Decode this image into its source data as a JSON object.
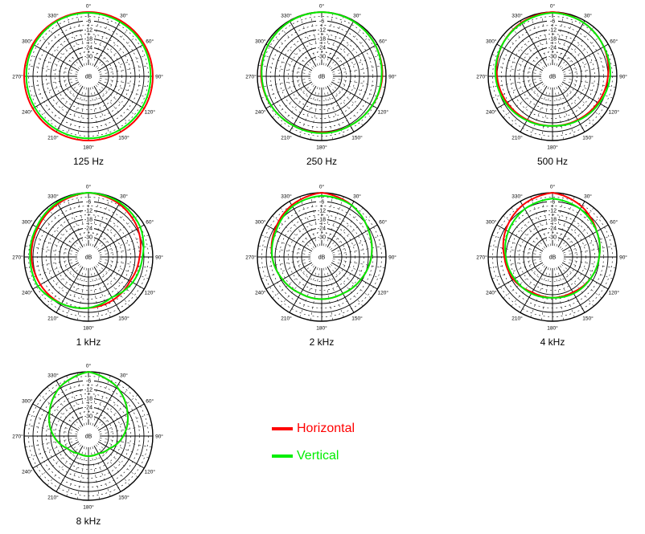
{
  "figure": {
    "ring_labels": [
      "-6",
      "-12",
      "-18",
      "-24",
      "-30"
    ],
    "center_label": "dB",
    "angle_labels": [
      "0°",
      "30°",
      "60°",
      "90°",
      "120°",
      "150°",
      "180°",
      "210°",
      "240°",
      "270°",
      "300°",
      "330°"
    ]
  },
  "legend": [
    {
      "label": "Horizontal",
      "color": "#ff0000"
    },
    {
      "label": "Vertical",
      "color": "#00ee00"
    }
  ],
  "chart_data": [
    {
      "type": "polar",
      "title": "125 Hz",
      "r_range_db": [
        -36,
        0
      ],
      "angles_deg": [
        0,
        30,
        60,
        90,
        120,
        150,
        180,
        210,
        240,
        270,
        300,
        330
      ],
      "series": [
        {
          "name": "Horizontal",
          "color": "#ff0000",
          "values": [
            0,
            0,
            0,
            0,
            0,
            0,
            0,
            0,
            0,
            0,
            0,
            0
          ]
        },
        {
          "name": "Vertical",
          "color": "#00ee00",
          "values": [
            -0.5,
            -1,
            -1,
            -1.5,
            -1.5,
            -1.5,
            -1.5,
            -1.5,
            -1.5,
            -1.5,
            -1,
            -0.5
          ]
        }
      ]
    },
    {
      "type": "polar",
      "title": "250 Hz",
      "r_range_db": [
        -36,
        0
      ],
      "angles_deg": [
        0,
        30,
        60,
        90,
        120,
        150,
        180,
        210,
        240,
        270,
        300,
        330
      ],
      "series": [
        {
          "name": "Horizontal",
          "color": "#ff0000",
          "values": [
            0,
            -0.5,
            -1.5,
            -2.5,
            -4,
            -5,
            -5.5,
            -5,
            -4,
            -2.5,
            -1.5,
            -0.5
          ]
        },
        {
          "name": "Vertical",
          "color": "#00ee00",
          "values": [
            0,
            -0.5,
            -1.5,
            -3,
            -4,
            -5,
            -5,
            -5,
            -4,
            -3,
            -1.5,
            -0.5
          ]
        }
      ]
    },
    {
      "type": "polar",
      "title": "500 Hz",
      "r_range_db": [
        -36,
        0
      ],
      "angles_deg": [
        0,
        30,
        60,
        90,
        120,
        150,
        180,
        210,
        240,
        270,
        300,
        330
      ],
      "series": [
        {
          "name": "Horizontal",
          "color": "#ff0000",
          "values": [
            0,
            -1.5,
            -3.5,
            -6,
            -8,
            -9.5,
            -10,
            -9.5,
            -8,
            -6,
            -3.5,
            -1.5
          ]
        },
        {
          "name": "Vertical",
          "color": "#00ee00",
          "values": [
            -0.5,
            -1.5,
            -3.5,
            -4.5,
            -7,
            -9,
            -10,
            -9,
            -7,
            -5,
            -3.5,
            -2
          ]
        }
      ]
    },
    {
      "type": "polar",
      "title": "1 kHz",
      "r_range_db": [
        -36,
        0
      ],
      "angles_deg": [
        0,
        30,
        60,
        90,
        120,
        150,
        180,
        210,
        240,
        270,
        300,
        330
      ],
      "series": [
        {
          "name": "Horizontal",
          "color": "#ff0000",
          "values": [
            0,
            -2,
            -5,
            -9,
            -11,
            -10,
            -9,
            -7,
            -6,
            -5,
            -4,
            -2
          ]
        },
        {
          "name": "Vertical",
          "color": "#00ee00",
          "values": [
            0,
            -1,
            -3,
            -7,
            -9,
            -12,
            -9,
            -7,
            -4,
            -4,
            -3,
            -1
          ]
        }
      ]
    },
    {
      "type": "polar",
      "title": "2 kHz",
      "r_range_db": [
        -36,
        0
      ],
      "angles_deg": [
        0,
        30,
        60,
        90,
        120,
        150,
        180,
        210,
        240,
        270,
        300,
        330
      ],
      "series": [
        {
          "name": "Horizontal",
          "color": "#ff0000",
          "values": [
            0,
            -3,
            -7,
            -10,
            -13,
            -15,
            -15,
            -15,
            -13,
            -10,
            -7,
            -3
          ]
        },
        {
          "name": "Vertical",
          "color": "#00ee00",
          "values": [
            -2,
            -3,
            -7,
            -10,
            -13,
            -15,
            -15,
            -15,
            -13,
            -10,
            -8,
            -4
          ]
        }
      ]
    },
    {
      "type": "polar",
      "title": "4 kHz",
      "r_range_db": [
        -36,
        0
      ],
      "angles_deg": [
        0,
        30,
        60,
        90,
        120,
        150,
        180,
        210,
        240,
        270,
        300,
        330
      ],
      "series": [
        {
          "name": "Horizontal",
          "color": "#ff0000",
          "values": [
            0,
            -4,
            -9,
            -12,
            -14,
            -16,
            -16,
            -16,
            -13,
            -11,
            -7,
            -3
          ]
        },
        {
          "name": "Vertical",
          "color": "#00ee00",
          "values": [
            -4,
            -6,
            -9,
            -12,
            -14,
            -15,
            -16,
            -15,
            -14,
            -12,
            -9,
            -6
          ]
        }
      ]
    },
    {
      "type": "polar",
      "title": "8 kHz",
      "r_range_db": [
        -36,
        0
      ],
      "angles_deg": [
        0,
        30,
        60,
        90,
        120,
        150,
        180,
        210,
        240,
        270,
        300,
        330
      ],
      "series": [
        {
          "name": "Horizontal",
          "color": "#ff0000",
          "values": [
            0,
            -5,
            -13,
            -20,
            -27,
            -30,
            -30,
            -30,
            -27,
            -20,
            -13,
            -5
          ]
        },
        {
          "name": "Vertical",
          "color": "#00ee00",
          "values": [
            0,
            -5,
            -13,
            -20,
            -27,
            -30,
            -30,
            -30,
            -27,
            -20,
            -13,
            -5
          ]
        }
      ]
    }
  ]
}
